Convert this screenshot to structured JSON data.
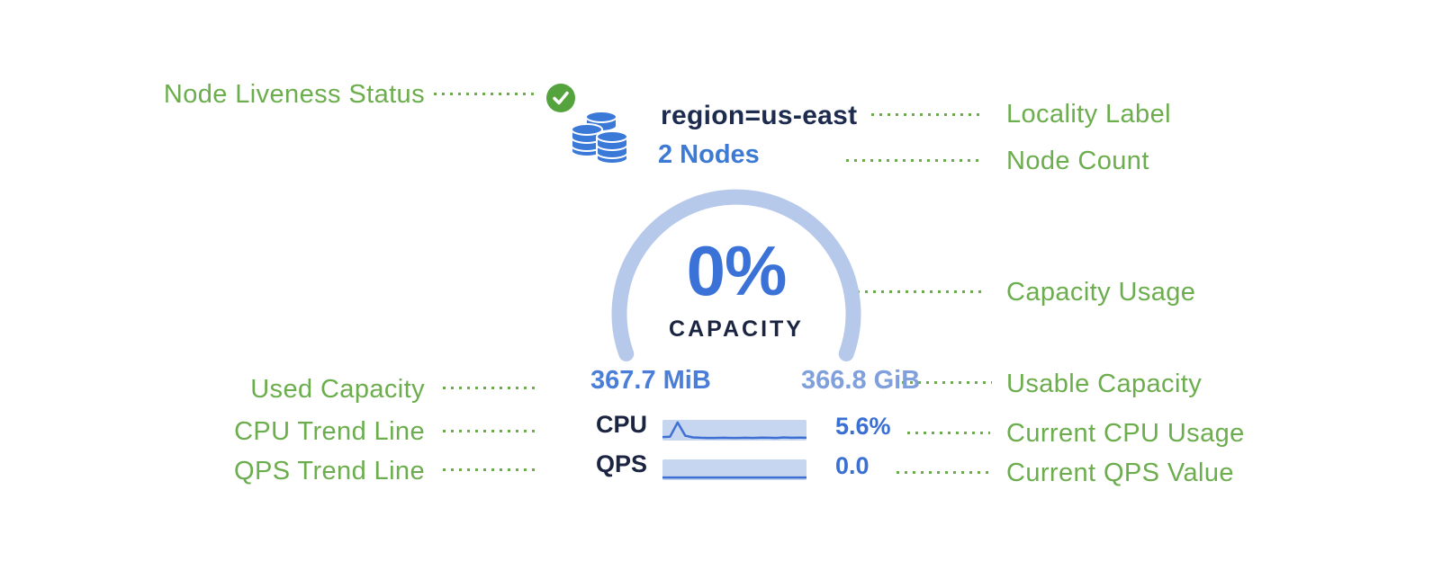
{
  "annotations": {
    "color": "#6cad4d",
    "left": [
      {
        "label": "Node Liveness Status"
      },
      {
        "label": "Used Capacity"
      },
      {
        "label": "CPU Trend Line"
      },
      {
        "label": "QPS Trend Line"
      }
    ],
    "right": [
      {
        "label": "Locality Label"
      },
      {
        "label": "Node Count"
      },
      {
        "label": "Capacity Usage"
      },
      {
        "label": "Usable Capacity"
      },
      {
        "label": "Current CPU Usage"
      },
      {
        "label": "Current QPS Value"
      }
    ]
  },
  "node_card": {
    "status_icon": "green-checkmark",
    "db_icon": "database-stack",
    "locality": "region=us-east",
    "node_count": "2 Nodes",
    "capacity": {
      "percent": "0%",
      "label": "CAPACITY",
      "used": "367.7 MiB",
      "usable": "366.8 GiB"
    },
    "metrics": [
      {
        "name": "CPU",
        "value": "5.6%",
        "trend": [
          0.1,
          0.12,
          0.95,
          0.18,
          0.08,
          0.06,
          0.05,
          0.05,
          0.06,
          0.05,
          0.05,
          0.06,
          0.05,
          0.07,
          0.06,
          0.05,
          0.08,
          0.06,
          0.07,
          0.06
        ]
      },
      {
        "name": "QPS",
        "value": "0.0",
        "trend": [
          0.05,
          0.05,
          0.05,
          0.05,
          0.05,
          0.05,
          0.05,
          0.05,
          0.05,
          0.05,
          0.05,
          0.05,
          0.05,
          0.05,
          0.05,
          0.05,
          0.05,
          0.05,
          0.05,
          0.05
        ]
      }
    ]
  },
  "colors": {
    "annotation_green": "#6cad4d",
    "status_green": "#54a33c",
    "navy": "#1c2b4e",
    "percent_blue": "#3b72d8",
    "node_count_blue": "#3c7ad3",
    "used_blue": "#4a7ed8",
    "usable_blue": "#7f9fdd",
    "arc_blue": "#b7c9ea",
    "spark_bg": "#c6d5f0",
    "spark_line": "#3e6fd2",
    "value_blue": "#3a70d2",
    "db_icon_blue": "#3b79d8"
  }
}
